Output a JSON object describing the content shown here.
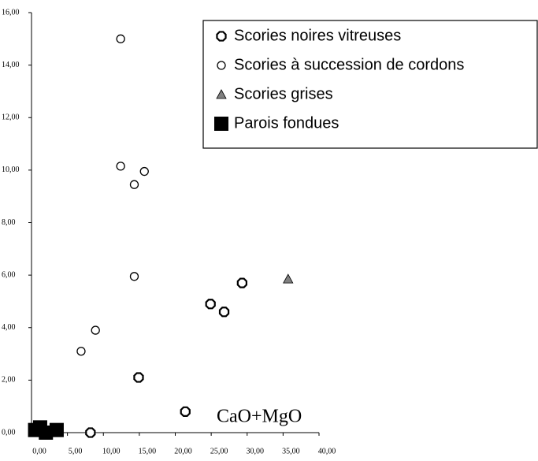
{
  "chart_data": {
    "type": "scatter",
    "x_label": "CaO+MgO",
    "xlim": [
      0,
      40
    ],
    "xticks": [
      {
        "value": 0,
        "label": "0,00"
      },
      {
        "value": 5,
        "label": "5,00"
      },
      {
        "value": 10,
        "label": "10,00"
      },
      {
        "value": 15,
        "label": "15,00"
      },
      {
        "value": 20,
        "label": "20,00"
      },
      {
        "value": 25,
        "label": "25,00"
      },
      {
        "value": 30,
        "label": "30,00"
      },
      {
        "value": 35,
        "label": "35,00"
      },
      {
        "value": 40,
        "label": "40,00"
      }
    ],
    "ylim": [
      0,
      16
    ],
    "yticks": [
      {
        "value": 0,
        "label": "0,00"
      },
      {
        "value": 2,
        "label": "2,00"
      },
      {
        "value": 4,
        "label": "4,00"
      },
      {
        "value": 6,
        "label": "6,00"
      },
      {
        "value": 8,
        "label": "8,00"
      },
      {
        "value": 10,
        "label": "10,00"
      },
      {
        "value": 12,
        "label": "12,00"
      },
      {
        "value": 14,
        "label": "14,00"
      },
      {
        "value": 16,
        "label": "16,00"
      }
    ],
    "legend": "top-right",
    "series": [
      {
        "name": "Scories noires vitreuses",
        "marker": "octagon",
        "color": "#000000",
        "x": [
          8.2,
          21.4,
          14.9,
          24.9,
          26.8,
          29.3
        ],
        "values": [
          0.0,
          0.8,
          2.1,
          4.9,
          4.6,
          5.7
        ]
      },
      {
        "name": "Scories à succession de cordons",
        "marker": "circle",
        "color": "#000000",
        "x": [
          12.4,
          12.4,
          14.3,
          15.7,
          14.3,
          8.9,
          6.9
        ],
        "values": [
          15.0,
          10.15,
          9.45,
          9.95,
          5.95,
          3.9,
          3.1
        ]
      },
      {
        "name": "Scories grises",
        "marker": "triangle",
        "color": "#808080",
        "x": [
          35.7
        ],
        "values": [
          5.85
        ]
      },
      {
        "name": "Parois fondues",
        "marker": "square",
        "color": "#000000",
        "x": [
          0.5,
          1.2,
          2.0,
          3.5
        ],
        "values": [
          0.1,
          0.2,
          0.0,
          0.1
        ]
      }
    ]
  }
}
